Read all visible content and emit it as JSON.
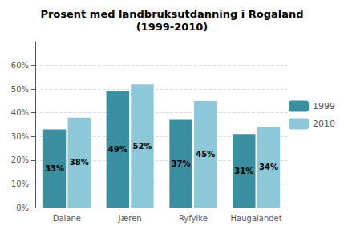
{
  "chart_data": {
    "type": "bar",
    "title": "Prosent med landbruksutdanning i Rogaland\n(1999-2010)",
    "categories": [
      "Dalane",
      "Jæren",
      "Ryfylke",
      "Haugalandet"
    ],
    "series": [
      {
        "name": "1999",
        "color": "#3A8FA0",
        "values": [
          33,
          49,
          37,
          31
        ],
        "value_labels": [
          "33%",
          "49%",
          "37%",
          "31%"
        ]
      },
      {
        "name": "2010",
        "color": "#8DC8D8",
        "values": [
          38,
          52,
          45,
          34
        ],
        "value_labels": [
          "38%",
          "52%",
          "45%",
          "34%"
        ]
      }
    ],
    "ylim": [
      0,
      70
    ],
    "yticks": [
      {
        "value": 0,
        "label": "0%"
      },
      {
        "value": 10,
        "label": "10%"
      },
      {
        "value": 20,
        "label": "20%"
      },
      {
        "value": 30,
        "label": "30%"
      },
      {
        "value": 40,
        "label": "40%"
      },
      {
        "value": 50,
        "label": "50%"
      },
      {
        "value": 60,
        "label": "60%"
      }
    ],
    "grid": true,
    "legend": "right",
    "data_labels": true
  }
}
